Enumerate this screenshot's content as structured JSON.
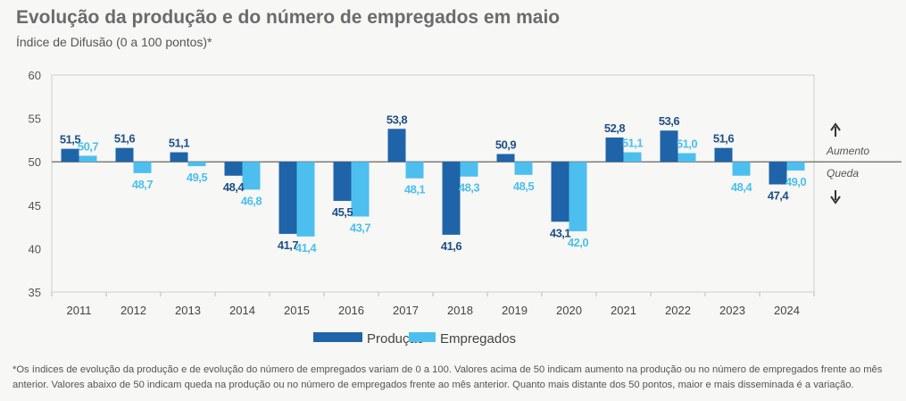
{
  "colors": {
    "producao": "#1f64a8",
    "empregados": "#4dbfee",
    "producao_label": "#1f4f86",
    "empregados_label": "#4dbfee"
  },
  "chart_data": {
    "type": "bar",
    "title": "Evolução da produção e do número de empregados em maio",
    "subtitle": "Índice de Difusão (0 a 100 pontos)*",
    "categories": [
      "2011",
      "2012",
      "2013",
      "2014",
      "2015",
      "2016",
      "2017",
      "2018",
      "2019",
      "2020",
      "2021",
      "2022",
      "2023",
      "2024"
    ],
    "baseline": 50,
    "ylim": [
      35,
      60
    ],
    "yticks": [
      35,
      40,
      45,
      50,
      55,
      60
    ],
    "grid": false,
    "legend_position": "bottom",
    "series": [
      {
        "name": "Produção",
        "values": [
          51.5,
          51.6,
          51.1,
          48.4,
          41.7,
          45.5,
          53.8,
          41.6,
          50.9,
          43.1,
          52.8,
          53.6,
          51.6,
          47.4
        ],
        "labels": [
          "51,5",
          "51,6",
          "51,1",
          "48,4",
          "41,7",
          "45,5",
          "53,8",
          "41,6",
          "50,9",
          "43,1",
          "52,8",
          "53,6",
          "51,6",
          "47,4"
        ]
      },
      {
        "name": "Empregados",
        "values": [
          50.7,
          48.7,
          49.5,
          46.8,
          41.4,
          43.7,
          48.1,
          48.3,
          48.5,
          42.0,
          51.1,
          51.0,
          48.4,
          49.0
        ],
        "labels": [
          "50,7",
          "48,7",
          "49,5",
          "46,8",
          "41,4",
          "43,7",
          "48,1",
          "48,3",
          "48,5",
          "42,0",
          "51,1",
          "51,0",
          "48,4",
          "49,0"
        ]
      }
    ],
    "annotations": {
      "up_label": "Aumento",
      "down_label": "Queda"
    }
  },
  "footnote": {
    "line1": "*Os índices de evolução da produção e de evolução do número de empregados variam de 0 a 100. Valores acima de 50 indicam aumento na produção ou no número de empregados frente ao mês",
    "line2": "anterior. Valores abaixo de 50 indicam queda na produção ou no número de empregados frente ao mês anterior. Quanto mais distante dos 50 pontos, maior e mais disseminada é a variação."
  }
}
